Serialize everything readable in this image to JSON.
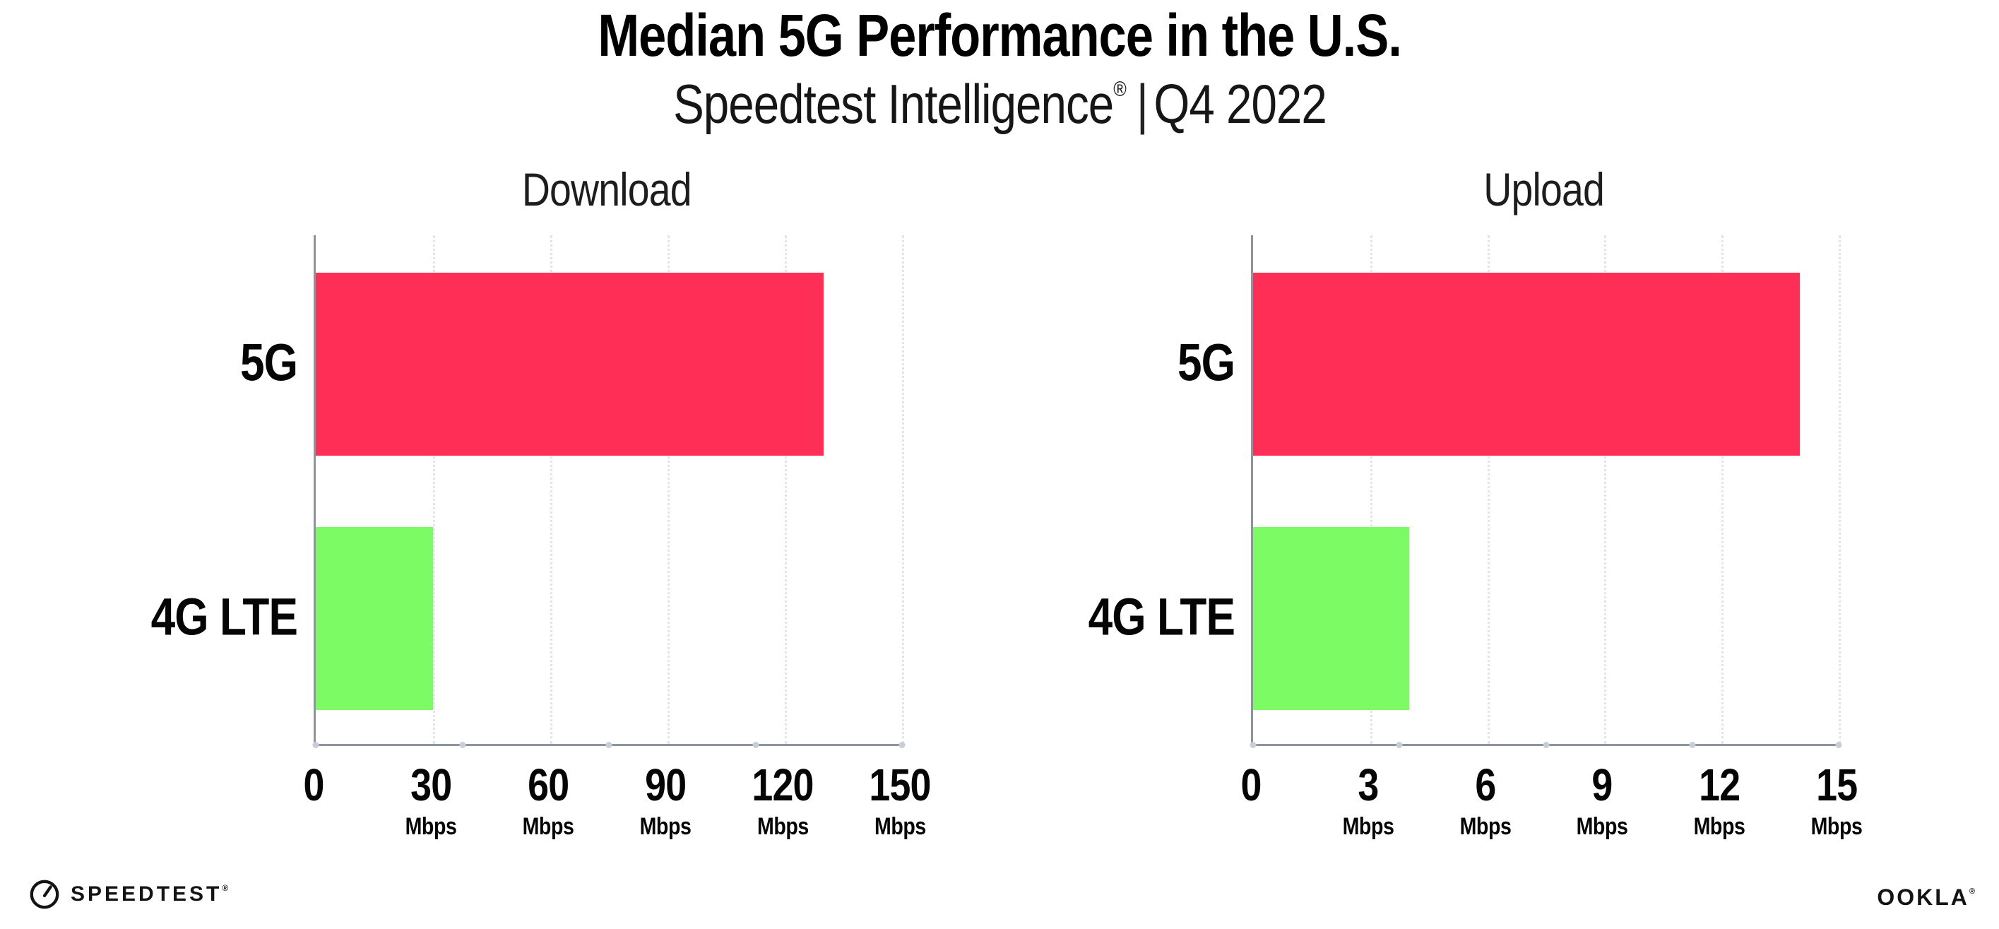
{
  "header": {
    "title": "Median 5G Performance in the U.S.",
    "subtitle": {
      "brand": "Speedtest Intelligence",
      "mark": "®",
      "separator": "|",
      "period": "Q4 2022"
    }
  },
  "colors": {
    "bar_5g": "#ff2e56",
    "bar_4g_lte": "#7dfb65",
    "axis_line": "#8f939b",
    "gridline": "#e2e3ee",
    "background": "#ffffff",
    "text": "#0b0b0b"
  },
  "chart_data": [
    {
      "type": "bar",
      "orientation": "horizontal",
      "title": "Download",
      "categories": [
        "5G",
        "4G LTE"
      ],
      "values": [
        130,
        30
      ],
      "unit": "Mbps",
      "xlim": [
        0,
        150
      ],
      "xticks": [
        0,
        30,
        60,
        90,
        120,
        150
      ],
      "bar_colors": [
        "#ff2e56",
        "#7dfb65"
      ],
      "grid": "dotted-vertical",
      "legend": "none"
    },
    {
      "type": "bar",
      "orientation": "horizontal",
      "title": "Upload",
      "categories": [
        "5G",
        "4G LTE"
      ],
      "values": [
        14,
        4
      ],
      "unit": "Mbps",
      "xlim": [
        0,
        15
      ],
      "xticks": [
        0,
        3,
        6,
        9,
        12,
        15
      ],
      "bar_colors": [
        "#ff2e56",
        "#7dfb65"
      ],
      "grid": "dotted-vertical",
      "legend": "none"
    }
  ],
  "footer": {
    "speedtest": {
      "label": "SPEEDTEST",
      "mark": "®"
    },
    "ookla": {
      "label": "OOKLA",
      "mark": "®"
    }
  }
}
